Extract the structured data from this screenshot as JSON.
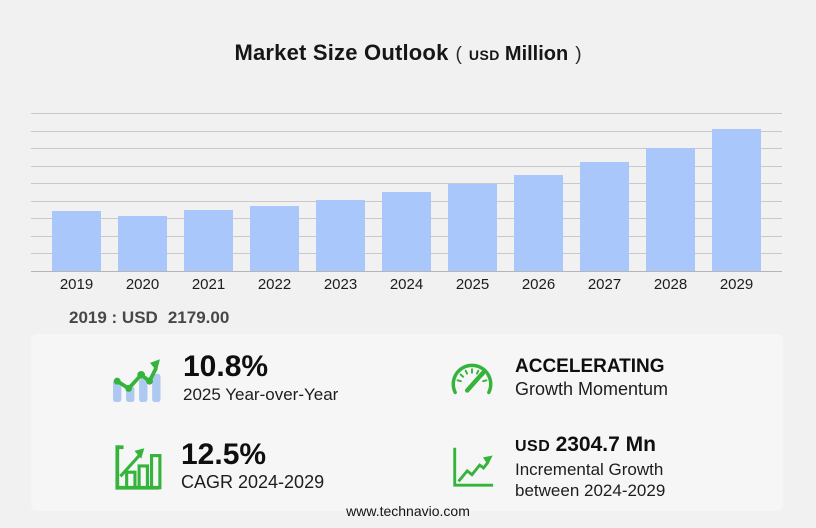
{
  "title": {
    "main": "Market Size Outlook",
    "paren_open": "(",
    "currency": "USD",
    "unit": "Million",
    "paren_close": ")"
  },
  "chart_data": {
    "type": "bar",
    "title": "Market Size Outlook (USD Million)",
    "categories": [
      "2019",
      "2020",
      "2021",
      "2022",
      "2023",
      "2024",
      "2025",
      "2026",
      "2027",
      "2028",
      "2029"
    ],
    "values": [
      2179.0,
      2001,
      2219,
      2364,
      2583,
      2873.4,
      3183.7,
      3492,
      3965,
      4474,
      5178.1
    ],
    "xlabel": "",
    "ylabel": "USD Million",
    "ylim": [
      0,
      5750
    ],
    "gridline_count": 10,
    "grid": true,
    "legend": false,
    "bar_color": "#a9c7fb",
    "annotation": "2019 : USD  2179.00"
  },
  "baseline_note": {
    "label": "2019 : USD",
    "value": "2179.00"
  },
  "stats": [
    {
      "icon": "bar-chart-trend-icon",
      "value": "10.8%",
      "label": "2025 Year-over-Year"
    },
    {
      "icon": "gauge-icon",
      "value": "ACCELERATING",
      "label": "Growth Momentum"
    },
    {
      "icon": "growth-bars-arrow-icon",
      "value": "12.5%",
      "label": "CAGR 2024-2029"
    },
    {
      "icon": "line-growth-axes-icon",
      "currency": "USD",
      "value": "2304.7 Mn",
      "label_line1": "Incremental Growth",
      "label_line2": "between 2024-2029"
    }
  ],
  "footer": {
    "website": "www.technavio.com"
  },
  "colors": {
    "background": "#f1f1f2",
    "bar": "#a9c7fb",
    "accent_green": "#35b43b",
    "grid": "#c9c9cb"
  }
}
